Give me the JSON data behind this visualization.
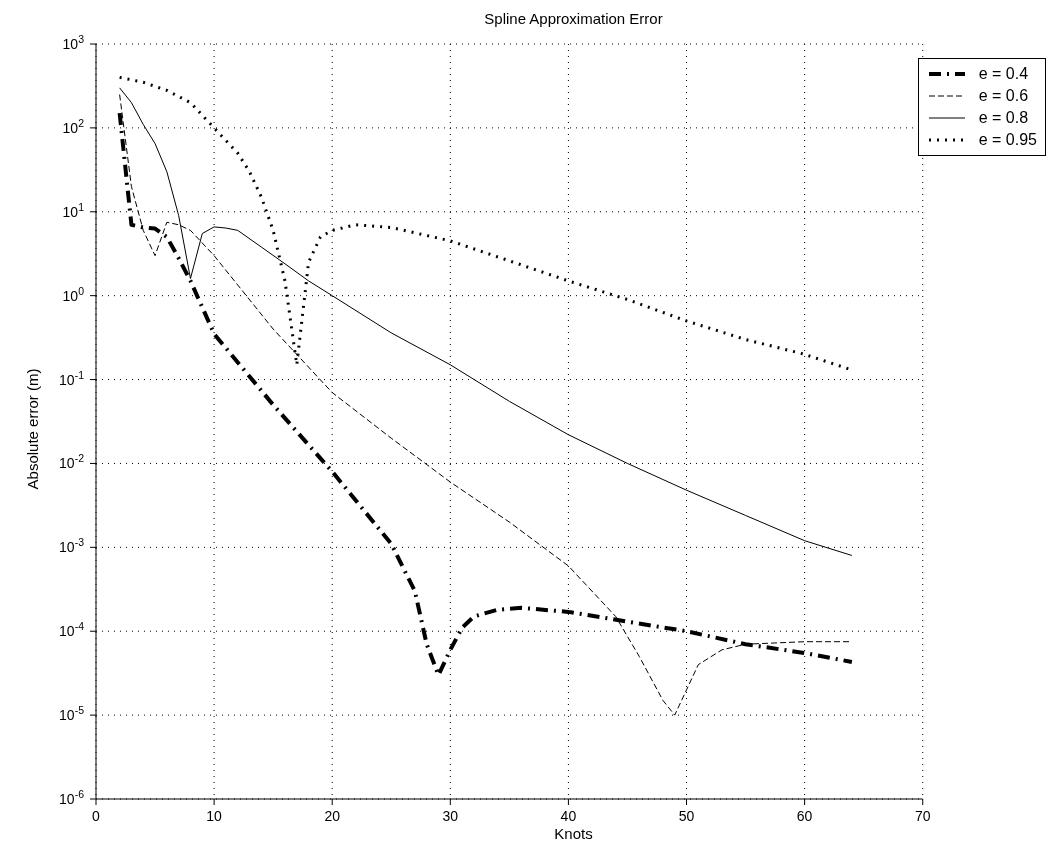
{
  "chart_data": {
    "type": "line",
    "title": "Spline Approximation Error",
    "xlabel": "Knots",
    "ylabel": "Absolute error (m)",
    "xlim": [
      0,
      70
    ],
    "xticks": [
      0,
      10,
      20,
      30,
      40,
      50,
      60,
      70
    ],
    "ylim": [
      1e-06,
      1000
    ],
    "yticks": [
      {
        "value": 1e-06,
        "label": "10$^{-6}$"
      },
      {
        "value": 1e-05,
        "label": "10$^{-5}$"
      },
      {
        "value": 0.0001,
        "label": "10$^{-4}$"
      },
      {
        "value": 0.001,
        "label": "10$^{-3}$"
      },
      {
        "value": 0.01,
        "label": "10$^{-2}$"
      },
      {
        "value": 0.1,
        "label": "10$^{-1}$"
      },
      {
        "value": 1,
        "label": "10$^{0}$"
      },
      {
        "value": 10,
        "label": "10$^{1}$"
      },
      {
        "value": 100,
        "label": "10$^{2}$"
      },
      {
        "value": 1000,
        "label": "10$^{3}$"
      }
    ],
    "log": "y",
    "grid": true,
    "legend": "top right",
    "marker": "none",
    "series": [
      {
        "name": "e = 0.4",
        "color": "#000000",
        "line_style": "dashdot",
        "x": [
          2,
          3,
          4,
          5,
          6,
          7,
          8,
          10,
          15,
          20,
          25,
          27,
          28,
          29,
          30,
          31,
          32,
          34,
          36,
          40,
          45,
          50,
          55,
          60,
          64
        ],
        "values": [
          150,
          7,
          6.5,
          6.3,
          5,
          2.8,
          1.5,
          0.35,
          0.05,
          0.008,
          0.0011,
          0.0003,
          7e-05,
          3e-05,
          6e-05,
          0.00011,
          0.00015,
          0.00018,
          0.00019,
          0.00017,
          0.00013,
          0.0001,
          7e-05,
          5.5e-05,
          4.3e-05
        ]
      },
      {
        "name": "e = 0.6",
        "color": "#000000",
        "line_style": "dashed",
        "x": [
          2,
          3,
          4,
          5,
          6,
          7,
          8,
          10,
          15,
          20,
          25,
          30,
          35,
          40,
          44,
          46,
          48,
          49,
          50,
          51,
          53,
          55,
          60,
          64
        ],
        "values": [
          250,
          20,
          6,
          3,
          7.5,
          7,
          6,
          3,
          0.4,
          0.07,
          0.02,
          0.006,
          0.002,
          0.0006,
          0.00015,
          5e-05,
          1.5e-05,
          1e-05,
          2e-05,
          4e-05,
          6e-05,
          7e-05,
          7.5e-05,
          7.5e-05
        ]
      },
      {
        "name": "e = 0.8",
        "color": "#000000",
        "line_style": "solid",
        "x": [
          2,
          3,
          4,
          5,
          6,
          7,
          8,
          9,
          10,
          11,
          12,
          14,
          16,
          18,
          20,
          25,
          30,
          35,
          40,
          45,
          50,
          55,
          60,
          64
        ],
        "values": [
          300,
          200,
          110,
          65,
          30,
          9,
          1.6,
          5.5,
          6.6,
          6.4,
          6,
          3.8,
          2.4,
          1.5,
          1,
          0.36,
          0.15,
          0.055,
          0.022,
          0.01,
          0.0048,
          0.0024,
          0.0012,
          0.0008
        ]
      },
      {
        "name": "e = 0.95",
        "color": "#000000",
        "line_style": "dotted",
        "x": [
          2,
          4,
          6,
          8,
          10,
          12,
          13,
          14,
          15,
          16,
          17,
          18,
          19,
          20,
          22,
          25,
          30,
          35,
          40,
          45,
          50,
          55,
          60,
          64
        ],
        "values": [
          400,
          350,
          280,
          200,
          100,
          50,
          30,
          15,
          6,
          1.5,
          0.15,
          2.5,
          5,
          6,
          7,
          6.5,
          4.5,
          2.6,
          1.5,
          0.9,
          0.5,
          0.3,
          0.2,
          0.13
        ]
      }
    ]
  }
}
